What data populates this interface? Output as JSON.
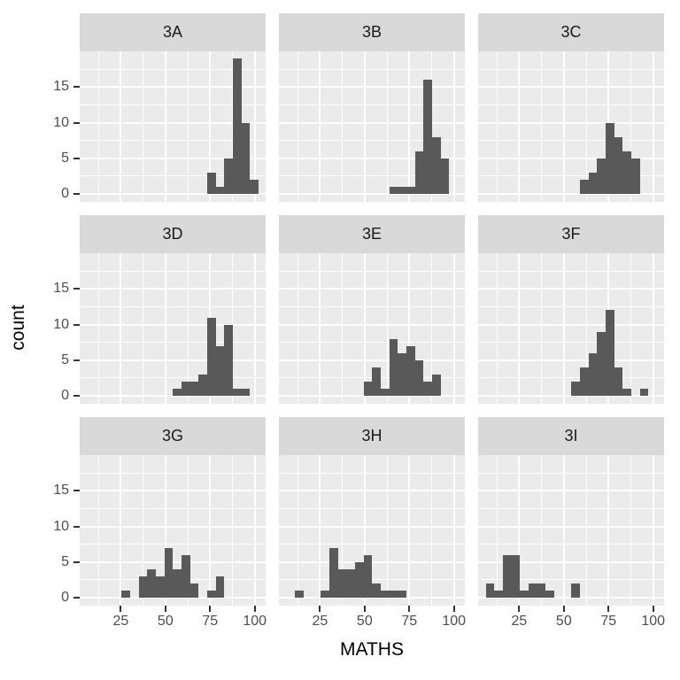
{
  "chart_data": {
    "type": "bar",
    "subtype": "faceted-histogram",
    "title": "",
    "xlabel": "MATHS",
    "ylabel": "count",
    "x_ticks": [
      25,
      50,
      75,
      100
    ],
    "y_ticks": [
      0,
      5,
      10,
      15
    ],
    "xlim": [
      2,
      106.1
    ],
    "ylim": [
      -1.1,
      20
    ],
    "binwidth": 4.79,
    "grid": {
      "major_x": [
        25,
        50,
        75,
        100
      ],
      "minor_x": [
        12.5,
        37.5,
        62.5,
        87.5
      ],
      "major_y": [
        0,
        5,
        10,
        15
      ],
      "minor_y": [
        2.5,
        7.5,
        12.5,
        17.5
      ]
    },
    "facets": [
      {
        "label": "3A",
        "x0": 73.4,
        "counts": [
          3,
          1,
          5,
          19,
          10,
          2
        ]
      },
      {
        "label": "3B",
        "x0": 63.8,
        "counts": [
          1,
          1,
          1,
          6,
          16,
          8,
          5
        ]
      },
      {
        "label": "3C",
        "x0": 59.0,
        "counts": [
          2,
          3,
          5,
          10,
          8,
          6,
          5
        ]
      },
      {
        "label": "3D",
        "x0": 54.2,
        "counts": [
          1,
          2,
          2,
          3,
          11,
          7,
          10,
          1,
          1
        ]
      },
      {
        "label": "3E",
        "x0": 49.4,
        "counts": [
          2,
          4,
          1,
          8,
          6,
          7,
          5,
          2,
          3
        ]
      },
      {
        "label": "3F",
        "x0": 54.2,
        "counts": [
          2,
          4,
          6,
          9,
          12,
          4,
          1,
          0,
          1
        ]
      },
      {
        "label": "3G",
        "x0": 25.5,
        "counts": [
          1,
          0,
          3,
          4,
          3,
          7,
          4,
          6,
          2,
          0,
          1,
          3
        ]
      },
      {
        "label": "3H",
        "x0": 11.1,
        "counts": [
          1,
          0,
          0,
          1,
          7,
          4,
          4,
          5,
          6,
          2,
          1,
          1,
          1
        ]
      },
      {
        "label": "3I",
        "x0": 6.3,
        "counts": [
          2,
          1,
          6,
          6,
          1,
          2,
          2,
          1,
          0,
          0,
          2
        ]
      }
    ],
    "colors": {
      "bar": "#595959",
      "panel_bg": "#EBEBEB",
      "strip_bg": "#D9D9D9",
      "gridline": "#FFFFFF",
      "tick_text": "#4D4D4D",
      "title_text": "#000000"
    },
    "legend": "none"
  }
}
